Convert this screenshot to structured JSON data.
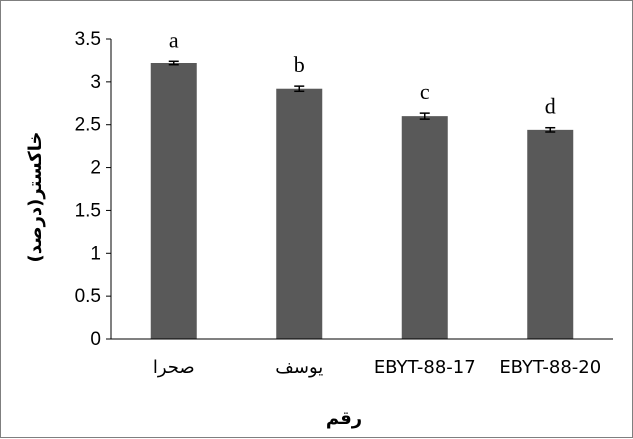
{
  "chart_data": {
    "type": "bar",
    "categories": [
      "صحرا",
      "یوسف",
      "EBYT-88-17",
      "EBYT-88-20"
    ],
    "values": [
      3.22,
      2.92,
      2.6,
      2.44
    ],
    "errors": [
      0.02,
      0.03,
      0.035,
      0.025
    ],
    "significance_letters": [
      "a",
      "b",
      "c",
      "d"
    ],
    "xlabel": "رقم",
    "ylabel": "خاکستر(درصد)",
    "ylim": [
      0,
      3.5
    ],
    "yticks": [
      "0",
      "0.5",
      "1",
      "1.5",
      "2",
      "2.5",
      "3",
      "3.5"
    ],
    "grid": false,
    "legend": "none",
    "colors": {
      "bar": "#595959",
      "axis": "#000000"
    }
  }
}
